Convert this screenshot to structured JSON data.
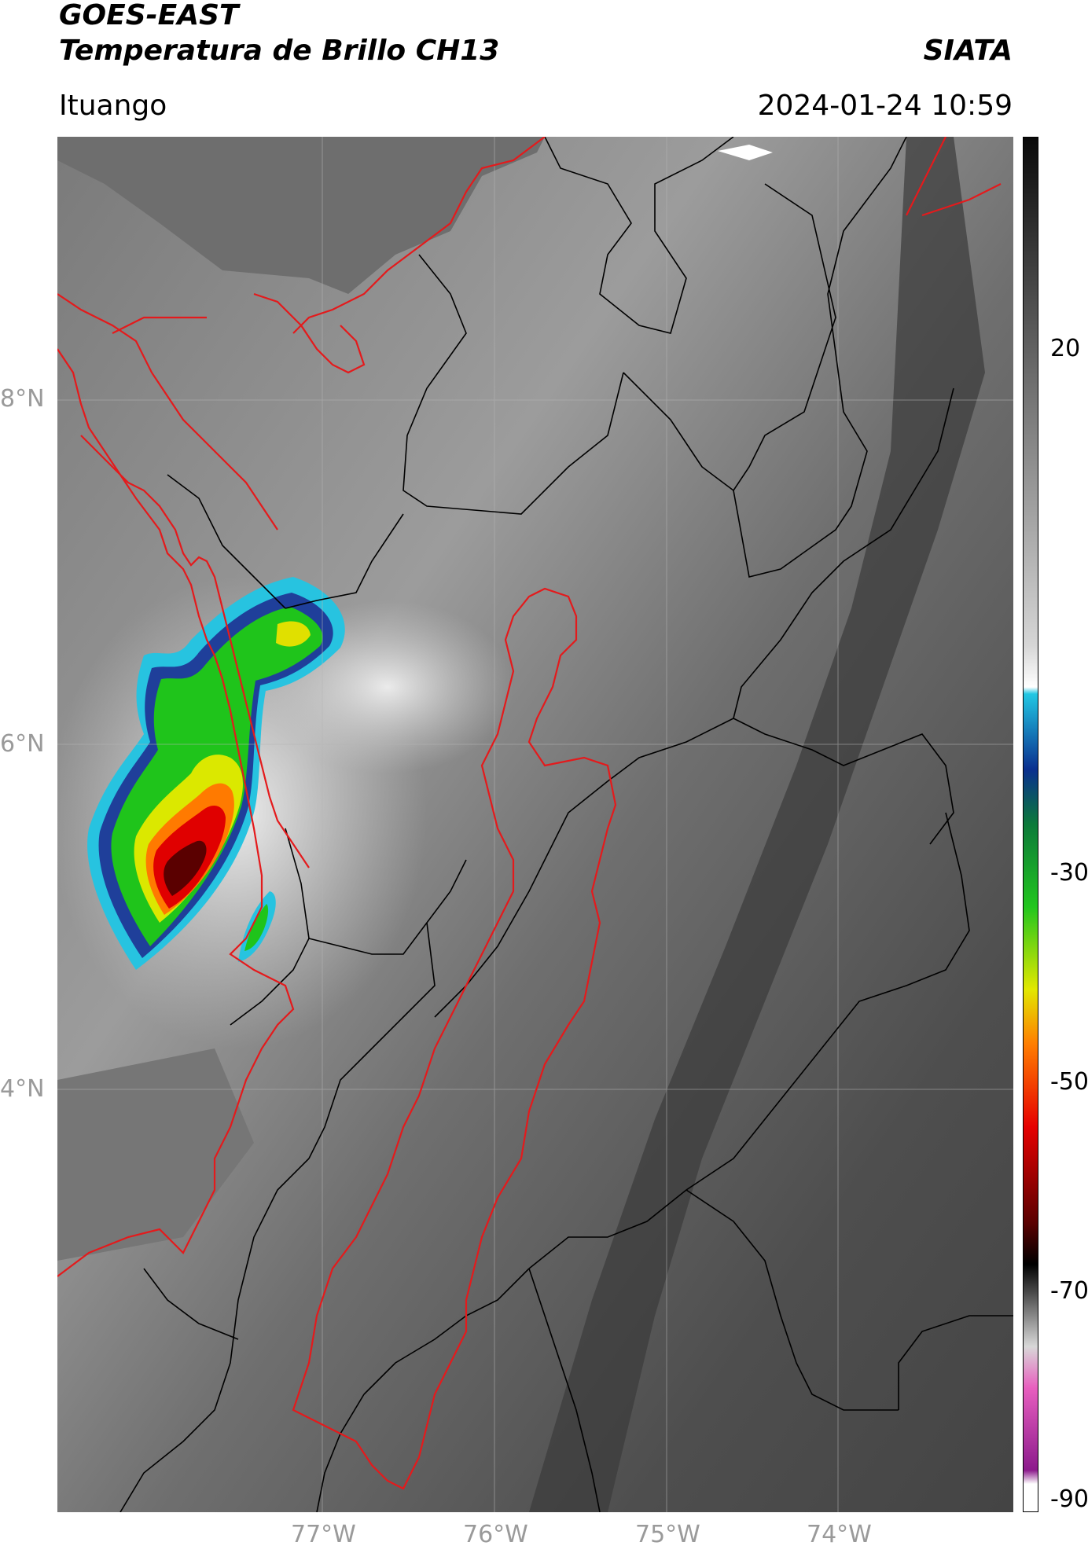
{
  "header": {
    "title_line1": "GOES-EAST",
    "title_line2": "Temperatura de Brillo CH13",
    "brand": "SIATA",
    "location": "Ituango",
    "datetime": "2024-01-24 10:59"
  },
  "map": {
    "lat_labels": [
      "8°N",
      "6°N",
      "4°N"
    ],
    "lon_labels": [
      "77°W",
      "76°W",
      "75°W",
      "74°W"
    ],
    "boundary_colors": {
      "country_coast": "#e41a1c",
      "departments": "#000000",
      "antioquia_outline": "#e41a1c"
    }
  },
  "colorbar": {
    "labels": [
      "20",
      "-30",
      "-50",
      "-70",
      "-90"
    ],
    "colors": [
      "#0a0a0a",
      "#6a6a6a",
      "#d6d6d6",
      "#ffffff",
      "#22c7e3",
      "#0a2f8f",
      "#0c7a3a",
      "#22c61e",
      "#e2e800",
      "#ff7d00",
      "#e60000",
      "#5a0000",
      "#000000",
      "#d8d8d8",
      "#e85fbf",
      "#8c1a8c",
      "#ffffff"
    ]
  }
}
